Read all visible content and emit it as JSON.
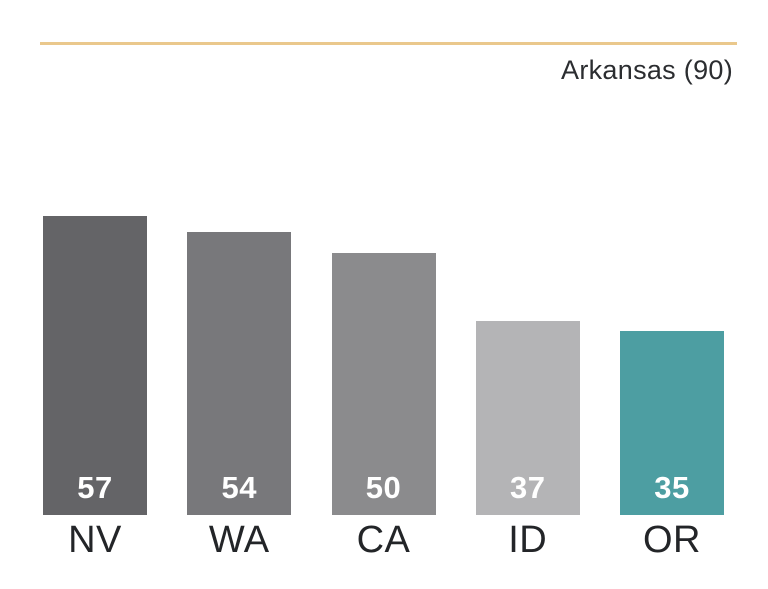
{
  "header": {
    "title": "Arkansas (90)",
    "rule_color": "#EAC88C",
    "title_color": "#2B2D30"
  },
  "chart_data": {
    "type": "bar",
    "title": "Arkansas (90)",
    "orientation": "vertical",
    "categories": [
      "NV",
      "WA",
      "CA",
      "ID",
      "OR"
    ],
    "values": [
      57,
      54,
      50,
      37,
      35
    ],
    "bar_colors": [
      "#646467",
      "#78787B",
      "#8B8B8D",
      "#B4B4B6",
      "#4D9EA2"
    ],
    "value_labels": [
      "57",
      "54",
      "50",
      "37",
      "35"
    ],
    "value_label_color": "#FFFFFF",
    "value_label_position": "inside-bottom",
    "category_label_color": "#232528",
    "xlabel": "",
    "ylabel": "",
    "ylim": [
      0,
      57
    ],
    "grid": false,
    "legend": false,
    "highlight_category": "OR",
    "highlight_color": "#4D9EA2"
  }
}
